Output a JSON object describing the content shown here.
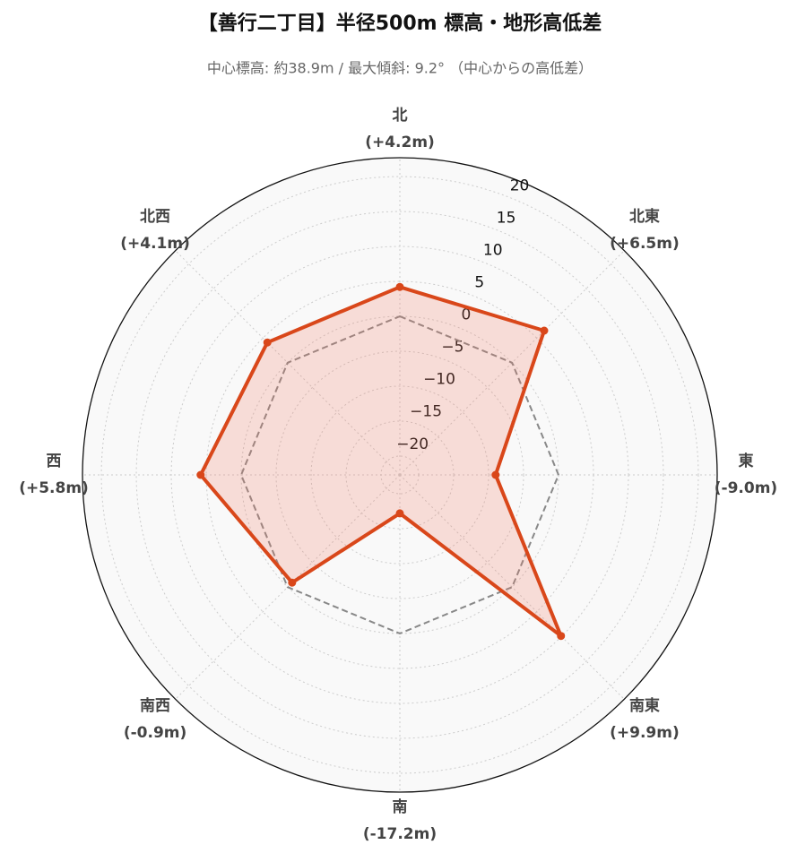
{
  "chart_data": {
    "type": "radar",
    "title": "【善行二丁目】半径500m 標高・地形高低差",
    "subtitle": "中心標高: 約38.9m / 最大傾斜: 9.2° （中心からの高低差）",
    "categories": [
      "北",
      "北東",
      "東",
      "南東",
      "南",
      "南西",
      "西",
      "北西"
    ],
    "series": [
      {
        "color": "#d9471a",
        "fill": "rgba(240,120,95,0.22)",
        "values": [
          4.2,
          6.5,
          -9.0,
          9.9,
          -17.2,
          -0.9,
          5.8,
          4.1
        ],
        "value_labels": [
          "(+4.2m)",
          "(+6.5m)",
          "(-9.0m)",
          "(+9.9m)",
          "(-17.2m)",
          "(-0.9m)",
          "(+5.8m)",
          "(+4.1m)"
        ]
      },
      {
        "color": "#888888",
        "dashed": true,
        "values": [
          0,
          0,
          0,
          0,
          0,
          0,
          0,
          0
        ]
      }
    ],
    "ylim": [
      -22.7,
      22.7
    ],
    "yticks": [
      {
        "value": -20,
        "label": "−20"
      },
      {
        "value": -15,
        "label": "−15"
      },
      {
        "value": -10,
        "label": "−10"
      },
      {
        "value": -5,
        "label": "−5"
      },
      0,
      5,
      10,
      15,
      20
    ],
    "grid": true
  }
}
